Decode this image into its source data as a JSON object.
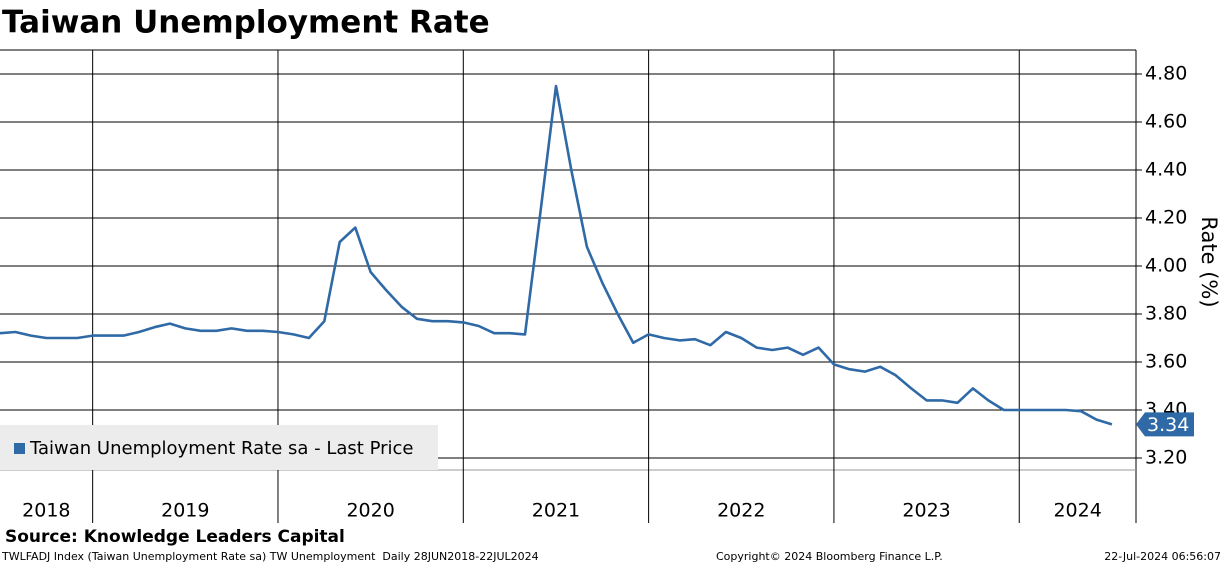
{
  "chart_data": {
    "type": "line",
    "title": "Taiwan Unemployment Rate",
    "y_label": "Rate (%)",
    "x": [
      2018.5,
      2018.583,
      2018.667,
      2018.75,
      2018.833,
      2018.917,
      2019,
      2019.083,
      2019.167,
      2019.25,
      2019.333,
      2019.417,
      2019.5,
      2019.583,
      2019.667,
      2019.75,
      2019.833,
      2019.917,
      2020,
      2020.083,
      2020.167,
      2020.25,
      2020.333,
      2020.417,
      2020.5,
      2020.583,
      2020.667,
      2020.75,
      2020.833,
      2020.917,
      2021,
      2021.083,
      2021.167,
      2021.25,
      2021.333,
      2021.417,
      2021.5,
      2021.583,
      2021.667,
      2021.75,
      2021.833,
      2021.917,
      2022,
      2022.083,
      2022.167,
      2022.25,
      2022.333,
      2022.417,
      2022.5,
      2022.583,
      2022.667,
      2022.75,
      2022.833,
      2022.917,
      2023,
      2023.083,
      2023.167,
      2023.25,
      2023.333,
      2023.417,
      2023.5,
      2023.583,
      2023.667,
      2023.75,
      2023.833,
      2023.917,
      2024,
      2024.083,
      2024.167,
      2024.25,
      2024.333,
      2024.417,
      2024.5
    ],
    "series": [
      {
        "name": "Taiwan Unemployment Rate sa - Last Price",
        "color": "#2f6aa7",
        "values": [
          3.72,
          3.725,
          3.71,
          3.7,
          3.7,
          3.7,
          3.71,
          3.71,
          3.71,
          3.725,
          3.745,
          3.76,
          3.74,
          3.73,
          3.73,
          3.74,
          3.73,
          3.73,
          3.725,
          3.715,
          3.7,
          3.77,
          4.1,
          4.16,
          3.975,
          3.9,
          3.83,
          3.78,
          3.77,
          3.77,
          3.765,
          3.75,
          3.72,
          3.72,
          3.715,
          4.23,
          4.75,
          4.4,
          4.08,
          3.93,
          3.8,
          3.68,
          3.715,
          3.7,
          3.69,
          3.695,
          3.67,
          3.725,
          3.7,
          3.66,
          3.65,
          3.66,
          3.63,
          3.66,
          3.59,
          3.57,
          3.56,
          3.58,
          3.545,
          3.49,
          3.44,
          3.44,
          3.43,
          3.49,
          3.44,
          3.4,
          3.4,
          3.4,
          3.4,
          3.4,
          3.395,
          3.36,
          3.34
        ]
      }
    ],
    "xlim": [
      2018.5,
      2024.63
    ],
    "xticks": [
      2018,
      2019,
      2020,
      2021,
      2022,
      2023,
      2024
    ],
    "ylim": [
      3.15,
      4.9
    ],
    "yticks": [
      {
        "value": 3.2,
        "label": "3.20"
      },
      {
        "value": 3.4,
        "label": "3.40"
      },
      {
        "value": 3.6,
        "label": "3.60"
      },
      {
        "value": 3.8,
        "label": "3.80"
      },
      {
        "value": 4.0,
        "label": "4.00"
      },
      {
        "value": 4.2,
        "label": "4.20"
      },
      {
        "value": 4.4,
        "label": "4.40"
      },
      {
        "value": 4.6,
        "label": "4.60"
      },
      {
        "value": 4.8,
        "label": "4.80"
      }
    ],
    "grid": true,
    "legend": "lower-left"
  },
  "source": "Source: Knowledge Leaders Capital",
  "footer": {
    "left": "TWLFADJ Index (Taiwan Unemployment Rate sa) TW Unemployment  Daily 28JUN2018-22JUL2024",
    "center": "Copyright© 2024 Bloomberg Finance L.P.",
    "right": "22-Jul-2024 06:56:07"
  }
}
